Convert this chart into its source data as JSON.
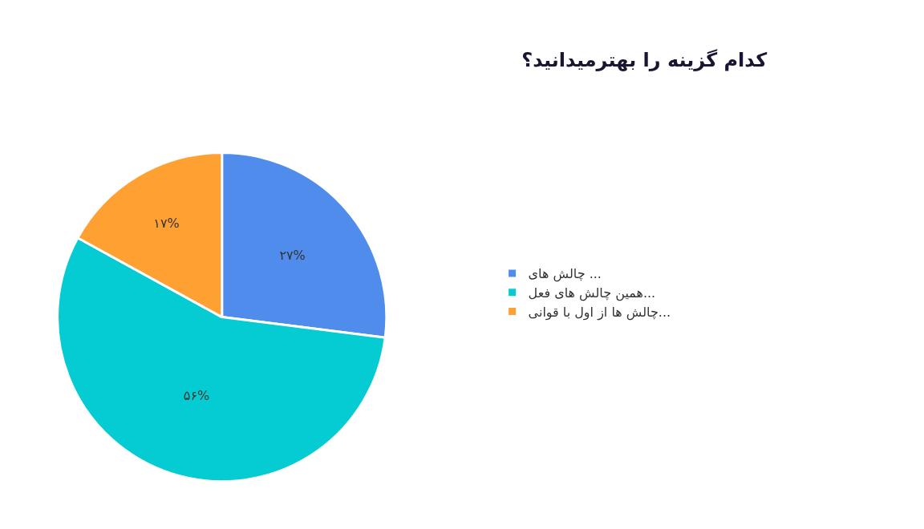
{
  "chart_data": {
    "type": "pie",
    "title": "کدام گزینه را بهترمیدانید؟",
    "categories": [
      "چالش های ...",
      "همین چالش های فعل...",
      "چالش ها از اول با قوانی..."
    ],
    "values": [
      27,
      56,
      17
    ],
    "value_labels": [
      "۲۷%",
      "۵۶%",
      "۱۷%"
    ],
    "colors": [
      "#4f8ceb",
      "#05cbd3",
      "#ffa033"
    ],
    "legend": "right"
  }
}
